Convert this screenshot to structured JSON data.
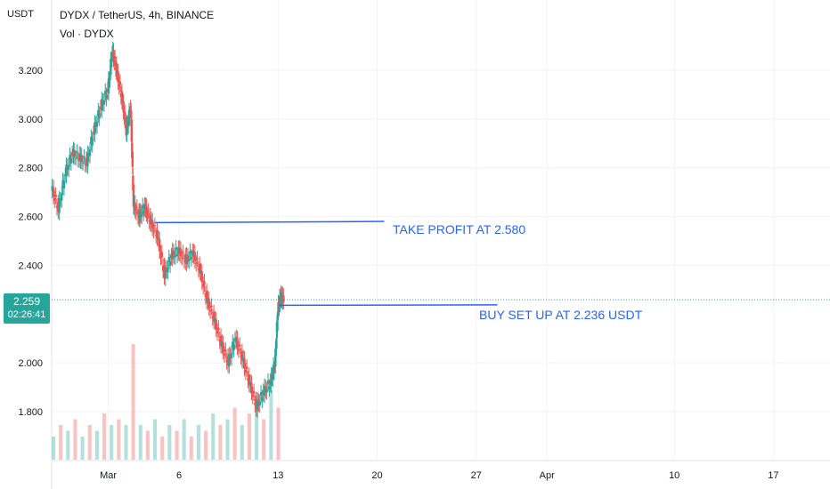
{
  "header": {
    "title": "DYDX / TetherUS, 4h, BINANCE",
    "volume_label": "Vol · DYDX",
    "unit": "USDT"
  },
  "price_badge": {
    "price": "2.259",
    "countdown": "02:26:41"
  },
  "annotations": {
    "take_profit": "TAKE PROFIT AT 2.580",
    "buy_setup": "BUY SET UP AT 2.236 USDT"
  },
  "colors": {
    "up": "#26a69a",
    "down": "#ef5350",
    "line": "#2962ff",
    "grid": "#f0f3fa"
  },
  "chart_data": {
    "type": "candlestick",
    "y_ticks": [
      "3.200",
      "3.000",
      "2.800",
      "2.600",
      "2.400",
      "2.000",
      "1.800"
    ],
    "y_tick_values": [
      3.2,
      3.0,
      2.8,
      2.6,
      2.4,
      2.0,
      1.8
    ],
    "ylim": [
      1.6,
      3.35
    ],
    "x_ticks": [
      "Mar",
      "6",
      "13",
      "20",
      "27",
      "Apr",
      "10",
      "17"
    ],
    "x_tick_days": [
      1,
      6,
      13,
      20,
      27,
      32,
      41,
      48
    ],
    "xlim_days": [
      -3,
      52
    ],
    "current_price": 2.259,
    "current_price_line": 2.259,
    "lines": [
      {
        "name": "take_profit",
        "x_start_day": 4.3,
        "x_end_day": 20.5,
        "y_start": 2.575,
        "y_end": 2.58
      },
      {
        "name": "buy_setup",
        "x_start_day": 13.1,
        "x_end_day": 28.5,
        "y_start": 2.236,
        "y_end": 2.238
      }
    ],
    "price_path": [
      [
        -3,
        2.72
      ],
      [
        -2.5,
        2.63
      ],
      [
        -2,
        2.78
      ],
      [
        -1.5,
        2.86
      ],
      [
        -1,
        2.84
      ],
      [
        -0.5,
        2.82
      ],
      [
        0,
        2.95
      ],
      [
        0.5,
        3.05
      ],
      [
        1,
        3.12
      ],
      [
        1.3,
        3.28
      ],
      [
        1.6,
        3.2
      ],
      [
        2,
        3.08
      ],
      [
        2.3,
        2.95
      ],
      [
        2.6,
        3.05
      ],
      [
        2.8,
        2.65
      ],
      [
        3.2,
        2.6
      ],
      [
        3.6,
        2.64
      ],
      [
        4,
        2.58
      ],
      [
        4.5,
        2.52
      ],
      [
        5,
        2.36
      ],
      [
        5.5,
        2.44
      ],
      [
        6,
        2.46
      ],
      [
        6.5,
        2.42
      ],
      [
        7,
        2.45
      ],
      [
        7.5,
        2.38
      ],
      [
        8,
        2.26
      ],
      [
        8.5,
        2.18
      ],
      [
        9,
        2.08
      ],
      [
        9.5,
        2.0
      ],
      [
        10,
        2.1
      ],
      [
        10.5,
        2.02
      ],
      [
        11,
        1.92
      ],
      [
        11.5,
        1.82
      ],
      [
        12,
        1.88
      ],
      [
        12.5,
        1.92
      ],
      [
        12.8,
        2.0
      ],
      [
        13,
        2.22
      ],
      [
        13.2,
        2.27
      ],
      [
        13.4,
        2.259
      ]
    ],
    "volume_max_note": "volume bars relative heights",
    "volume_relative": [
      0.2,
      0.3,
      0.25,
      0.35,
      0.2,
      0.3,
      0.25,
      0.4,
      0.3,
      0.35,
      0.3,
      1.0,
      0.3,
      0.25,
      0.35,
      0.2,
      0.3,
      0.25,
      0.35,
      0.2,
      0.3,
      0.25,
      0.4,
      0.3,
      0.35,
      0.45,
      0.3,
      0.4,
      0.55,
      0.35,
      0.6,
      0.45
    ]
  }
}
